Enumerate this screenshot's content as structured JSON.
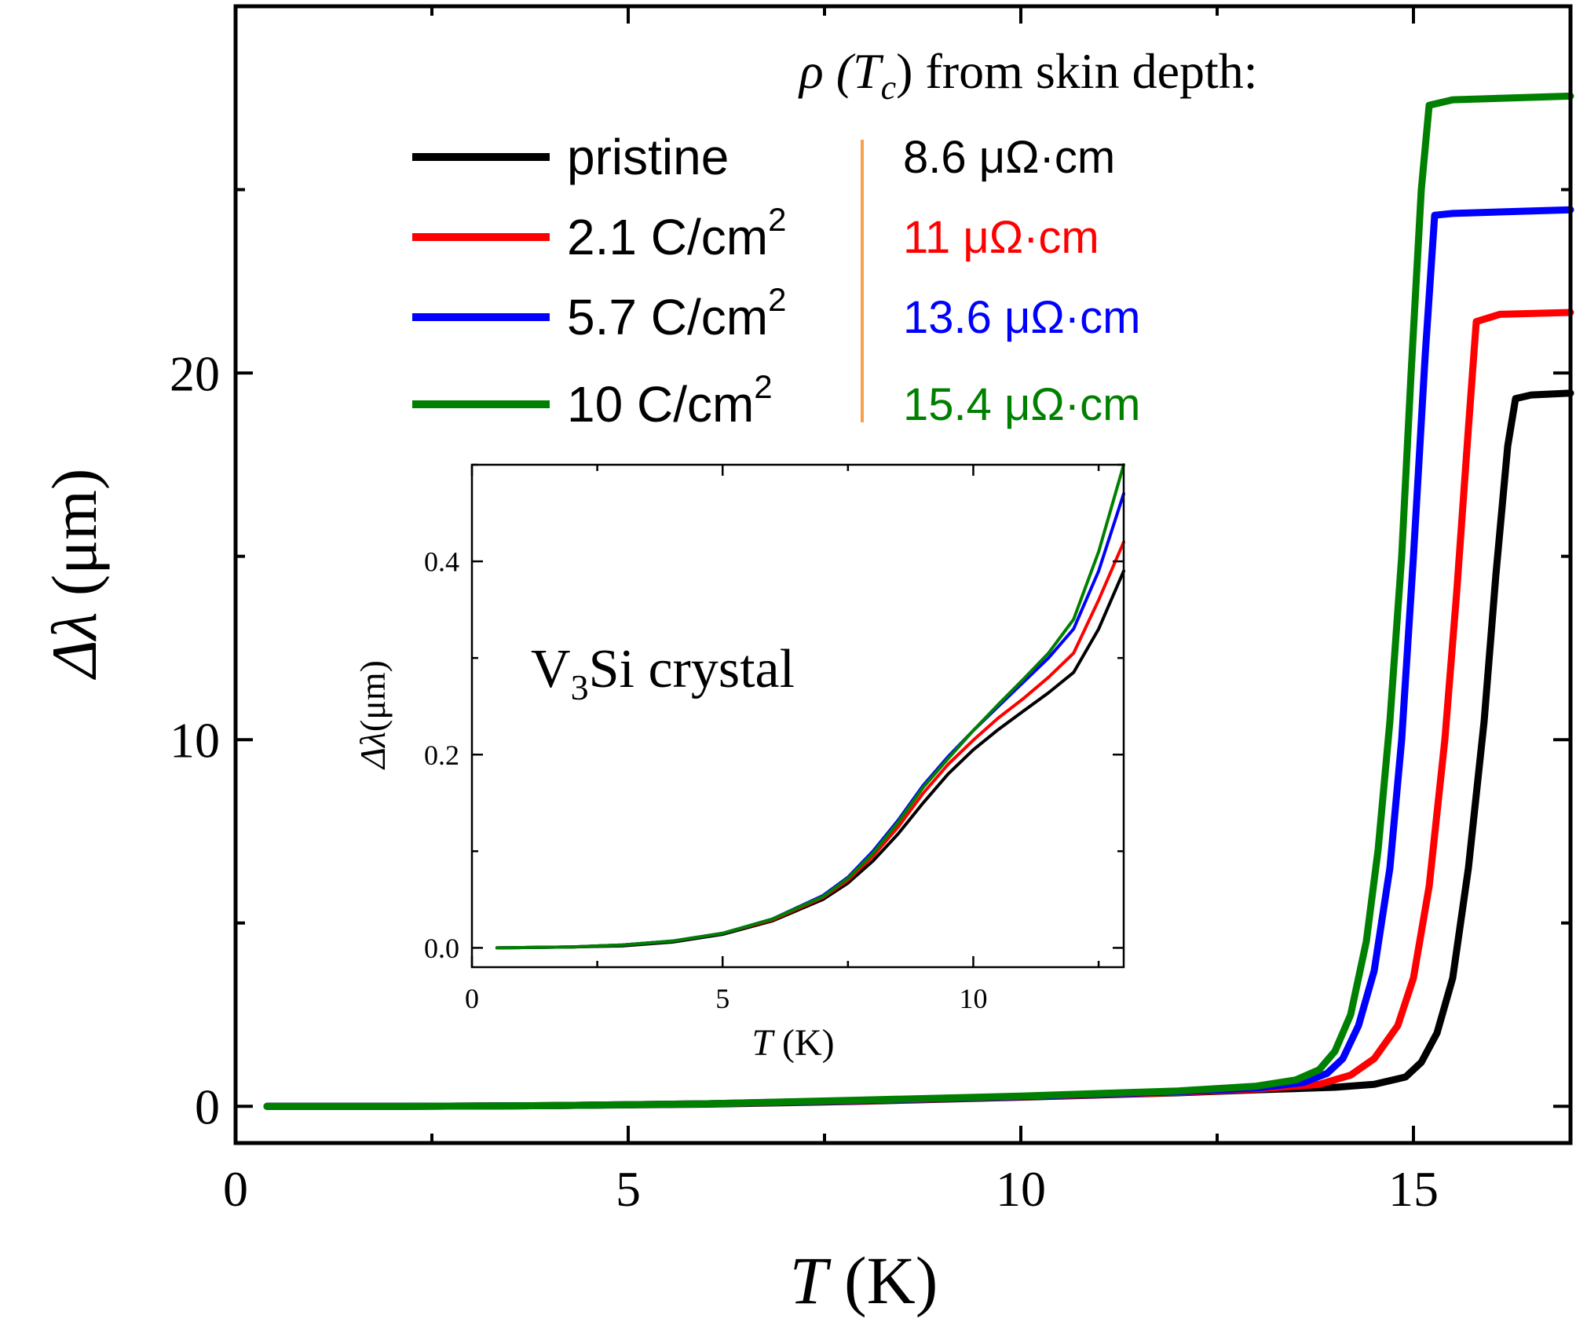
{
  "chart_data": [
    {
      "id": "main",
      "type": "line",
      "xlabel_italic": "T",
      "xlabel_unit": "(K)",
      "ylabel_symbol": "Δλ",
      "ylabel_unit": "(μm)",
      "xlim": [
        0,
        17
      ],
      "ylim": [
        -1,
        30
      ],
      "xticks": [
        0,
        5,
        10,
        15
      ],
      "xtick_labels": [
        "0",
        "5",
        "10",
        "15"
      ],
      "yticks": [
        0,
        10,
        20
      ],
      "ytick_labels": [
        "0",
        "10",
        "20"
      ],
      "legend_title": "ρ (T_c) from skin depth:",
      "legend_title_rho": "ρ (",
      "legend_title_T": "T",
      "legend_title_c": "c",
      "legend_title_rest": ") from skin depth:",
      "series": [
        {
          "name": "pristine",
          "label": "pristine",
          "label_sup": "",
          "resistivity": "8.6 μΩ·cm",
          "color": "#000000",
          "points": [
            [
              0.4,
              0
            ],
            [
              2,
              0
            ],
            [
              4,
              0.02
            ],
            [
              6,
              0.06
            ],
            [
              8,
              0.14
            ],
            [
              10,
              0.25
            ],
            [
              12,
              0.37
            ],
            [
              13,
              0.45
            ],
            [
              14,
              0.52
            ],
            [
              14.5,
              0.6
            ],
            [
              14.9,
              0.8
            ],
            [
              15.1,
              1.2
            ],
            [
              15.3,
              2.0
            ],
            [
              15.5,
              3.5
            ],
            [
              15.7,
              6.5
            ],
            [
              15.9,
              10.5
            ],
            [
              16.05,
              14.5
            ],
            [
              16.2,
              18.0
            ],
            [
              16.3,
              19.3
            ],
            [
              16.5,
              19.4
            ],
            [
              17,
              19.45
            ]
          ]
        },
        {
          "name": "2.1 C/cm2",
          "label": "2.1 C/cm",
          "label_sup": "2",
          "resistivity": "11 μΩ·cm",
          "color": "#ff0000",
          "points": [
            [
              0.4,
              0
            ],
            [
              2,
              0
            ],
            [
              4,
              0.02
            ],
            [
              6,
              0.07
            ],
            [
              8,
              0.15
            ],
            [
              10,
              0.26
            ],
            [
              12,
              0.38
            ],
            [
              13,
              0.47
            ],
            [
              13.8,
              0.6
            ],
            [
              14.2,
              0.85
            ],
            [
              14.5,
              1.3
            ],
            [
              14.8,
              2.2
            ],
            [
              15,
              3.5
            ],
            [
              15.2,
              6.0
            ],
            [
              15.4,
              10.0
            ],
            [
              15.55,
              14.0
            ],
            [
              15.7,
              18.5
            ],
            [
              15.8,
              21.4
            ],
            [
              16.1,
              21.6
            ],
            [
              17,
              21.65
            ]
          ]
        },
        {
          "name": "5.7 C/cm2",
          "label": "5.7 C/cm",
          "label_sup": "2",
          "resistivity": "13.6 μΩ·cm",
          "color": "#0000ff",
          "points": [
            [
              0.4,
              0
            ],
            [
              2,
              0
            ],
            [
              4,
              0.02
            ],
            [
              6,
              0.07
            ],
            [
              8,
              0.16
            ],
            [
              10,
              0.27
            ],
            [
              12,
              0.4
            ],
            [
              13,
              0.5
            ],
            [
              13.6,
              0.65
            ],
            [
              13.9,
              0.9
            ],
            [
              14.1,
              1.3
            ],
            [
              14.3,
              2.2
            ],
            [
              14.5,
              3.7
            ],
            [
              14.7,
              6.5
            ],
            [
              14.85,
              10.0
            ],
            [
              15,
              15.0
            ],
            [
              15.15,
              20.5
            ],
            [
              15.27,
              24.3
            ],
            [
              15.5,
              24.35
            ],
            [
              17,
              24.45
            ]
          ]
        },
        {
          "name": "10 C/cm2",
          "label": "10 C/cm",
          "label_sup": "2",
          "resistivity": "15.4 μΩ·cm",
          "color": "#008000",
          "points": [
            [
              0.4,
              0
            ],
            [
              2,
              0
            ],
            [
              4,
              0.02
            ],
            [
              6,
              0.07
            ],
            [
              8,
              0.17
            ],
            [
              10,
              0.28
            ],
            [
              12,
              0.42
            ],
            [
              13,
              0.55
            ],
            [
              13.5,
              0.72
            ],
            [
              13.8,
              1.0
            ],
            [
              14,
              1.5
            ],
            [
              14.2,
              2.5
            ],
            [
              14.4,
              4.5
            ],
            [
              14.55,
              7.0
            ],
            [
              14.7,
              10.5
            ],
            [
              14.85,
              15.0
            ],
            [
              14.97,
              20.0
            ],
            [
              15.1,
              25.0
            ],
            [
              15.2,
              27.3
            ],
            [
              15.5,
              27.45
            ],
            [
              17,
              27.55
            ]
          ]
        }
      ]
    },
    {
      "id": "inset",
      "type": "line",
      "annotation_main": "V",
      "annotation_sub": "3",
      "annotation_rest": "Si crystal",
      "xlabel_italic": "T",
      "xlabel_unit": "(K)",
      "ylabel_symbol": "Δλ",
      "ylabel_unit": "(μm)",
      "xlim": [
        0,
        13
      ],
      "ylim": [
        -0.02,
        0.5
      ],
      "xticks": [
        0,
        5,
        10
      ],
      "xtick_labels": [
        "0",
        "5",
        "10"
      ],
      "yticks": [
        0,
        0.2,
        0.4
      ],
      "ytick_labels": [
        "0.0",
        "0.2",
        "0.4"
      ],
      "series": [
        {
          "name": "pristine",
          "color": "#000000",
          "points": [
            [
              0.5,
              0
            ],
            [
              2,
              0.001
            ],
            [
              3,
              0.002
            ],
            [
              4,
              0.006
            ],
            [
              5,
              0.014
            ],
            [
              6,
              0.028
            ],
            [
              7,
              0.05
            ],
            [
              7.5,
              0.067
            ],
            [
              8,
              0.09
            ],
            [
              8.5,
              0.118
            ],
            [
              9,
              0.15
            ],
            [
              9.5,
              0.18
            ],
            [
              10,
              0.205
            ],
            [
              10.5,
              0.226
            ],
            [
              11,
              0.245
            ],
            [
              11.5,
              0.264
            ],
            [
              12,
              0.285
            ],
            [
              12.5,
              0.33
            ],
            [
              13,
              0.39
            ]
          ]
        },
        {
          "name": "2.1 C/cm2",
          "color": "#ff0000",
          "points": [
            [
              0.5,
              0
            ],
            [
              2,
              0.001
            ],
            [
              3,
              0.003
            ],
            [
              4,
              0.007
            ],
            [
              5,
              0.015
            ],
            [
              6,
              0.029
            ],
            [
              7,
              0.052
            ],
            [
              7.5,
              0.07
            ],
            [
              8,
              0.095
            ],
            [
              8.5,
              0.125
            ],
            [
              9,
              0.16
            ],
            [
              9.5,
              0.19
            ],
            [
              10,
              0.215
            ],
            [
              10.5,
              0.238
            ],
            [
              11,
              0.258
            ],
            [
              11.5,
              0.28
            ],
            [
              12,
              0.305
            ],
            [
              12.5,
              0.36
            ],
            [
              13,
              0.42
            ]
          ]
        },
        {
          "name": "5.7 C/cm2",
          "color": "#0000ff",
          "points": [
            [
              0.5,
              0
            ],
            [
              2,
              0.001
            ],
            [
              3,
              0.003
            ],
            [
              4,
              0.007
            ],
            [
              5,
              0.015
            ],
            [
              6,
              0.03
            ],
            [
              7,
              0.054
            ],
            [
              7.5,
              0.073
            ],
            [
              8,
              0.1
            ],
            [
              8.5,
              0.132
            ],
            [
              9,
              0.168
            ],
            [
              9.5,
              0.198
            ],
            [
              10,
              0.225
            ],
            [
              10.5,
              0.25
            ],
            [
              11,
              0.275
            ],
            [
              11.5,
              0.3
            ],
            [
              12,
              0.33
            ],
            [
              12.5,
              0.39
            ],
            [
              13,
              0.47
            ]
          ]
        },
        {
          "name": "10 C/cm2",
          "color": "#008000",
          "points": [
            [
              0.5,
              0
            ],
            [
              2,
              0.001
            ],
            [
              3,
              0.003
            ],
            [
              4,
              0.007
            ],
            [
              5,
              0.015
            ],
            [
              6,
              0.03
            ],
            [
              7,
              0.053
            ],
            [
              7.5,
              0.072
            ],
            [
              8,
              0.098
            ],
            [
              8.5,
              0.13
            ],
            [
              9,
              0.166
            ],
            [
              9.5,
              0.196
            ],
            [
              10,
              0.225
            ],
            [
              10.5,
              0.252
            ],
            [
              11,
              0.278
            ],
            [
              11.5,
              0.305
            ],
            [
              12,
              0.34
            ],
            [
              12.5,
              0.41
            ],
            [
              13,
              0.5
            ]
          ]
        }
      ]
    }
  ]
}
